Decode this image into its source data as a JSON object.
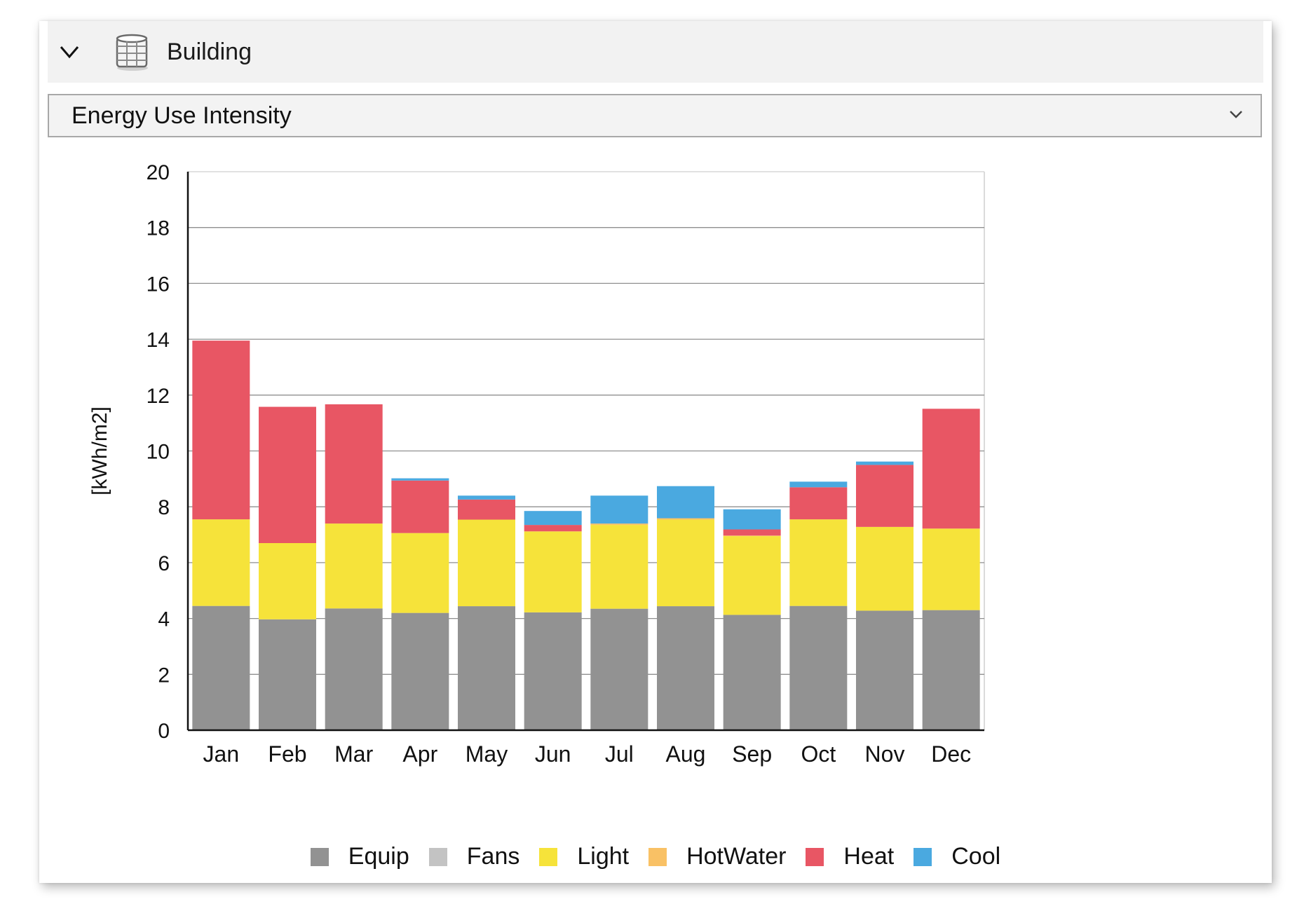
{
  "header": {
    "title": "Building",
    "chevron_icon": "chevron-down-icon",
    "building_icon": "building-icon"
  },
  "metric_select": {
    "value": "Energy Use Intensity"
  },
  "colors": {
    "Equip": "#929292",
    "Fans": "#c3c3c3",
    "Light": "#f6e33a",
    "HotWater": "#f9c165",
    "Heat": "#e85664",
    "Cool": "#4aa9e0"
  },
  "chart_data": {
    "type": "bar",
    "stacked": true,
    "title": "",
    "xlabel": "",
    "ylabel": "[kWh/m2]",
    "ylim": [
      0,
      20
    ],
    "yticks": [
      0,
      2,
      4,
      6,
      8,
      10,
      12,
      14,
      16,
      18,
      20
    ],
    "grid": true,
    "legend_position": "bottom",
    "categories": [
      "Jan",
      "Feb",
      "Mar",
      "Apr",
      "May",
      "Jun",
      "Jul",
      "Aug",
      "Sep",
      "Oct",
      "Nov",
      "Dec"
    ],
    "series": [
      {
        "name": "Equip",
        "values": [
          4.45,
          3.97,
          4.36,
          4.2,
          4.44,
          4.22,
          4.35,
          4.44,
          4.13,
          4.45,
          4.28,
          4.3
        ]
      },
      {
        "name": "Fans",
        "values": [
          0,
          0,
          0,
          0,
          0,
          0,
          0,
          0,
          0,
          0,
          0,
          0
        ]
      },
      {
        "name": "Light",
        "values": [
          3.1,
          2.73,
          3.04,
          2.86,
          3.1,
          2.9,
          3.0,
          3.1,
          2.82,
          3.1,
          3.0,
          2.92
        ]
      },
      {
        "name": "HotWater",
        "values": [
          0,
          0,
          0,
          0,
          0,
          0,
          0.05,
          0.05,
          0.02,
          0,
          0,
          0
        ]
      },
      {
        "name": "Heat",
        "values": [
          6.4,
          4.88,
          4.27,
          1.88,
          0.72,
          0.23,
          0,
          0,
          0.22,
          1.15,
          2.22,
          4.29
        ]
      },
      {
        "name": "Cool",
        "values": [
          0,
          0,
          0,
          0.08,
          0.14,
          0.5,
          1.0,
          1.15,
          0.72,
          0.2,
          0.12,
          0
        ]
      }
    ]
  }
}
